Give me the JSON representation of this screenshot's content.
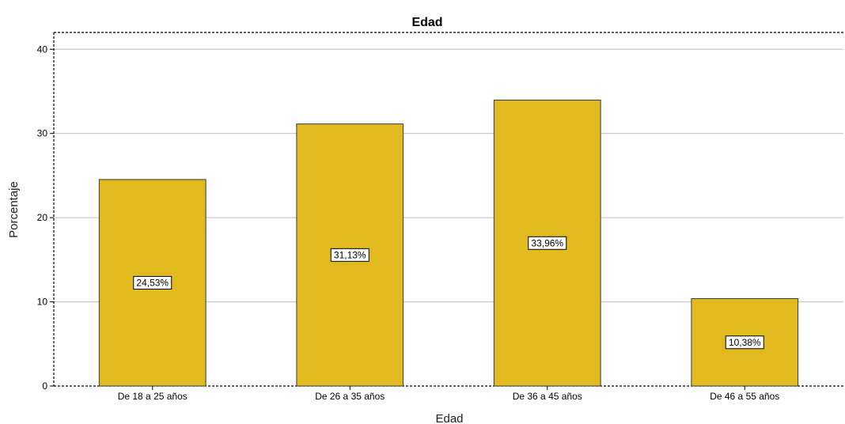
{
  "chart_data": {
    "type": "bar",
    "title": "Edad",
    "xlabel": "Edad",
    "ylabel": "Porcentaje",
    "categories": [
      "De 18 a 25 años",
      "De 26 a 35 años",
      "De 36 a 45 años",
      "De 46 a 55 años"
    ],
    "values": [
      24.53,
      31.13,
      33.96,
      10.38
    ],
    "data_labels": [
      "24,53%",
      "31,13%",
      "33,96%",
      "10,38%"
    ],
    "ylim": [
      0,
      42
    ],
    "yticks": [
      0,
      10,
      20,
      30,
      40
    ],
    "ytick_labels": [
      "0",
      "10",
      "20",
      "30",
      "40"
    ],
    "grid": true,
    "colors": {
      "bar_fill": "#E0BA1E",
      "bar_stroke": "#3a3a3a",
      "grid": "#bdbdbd",
      "frame": "#000000"
    }
  }
}
